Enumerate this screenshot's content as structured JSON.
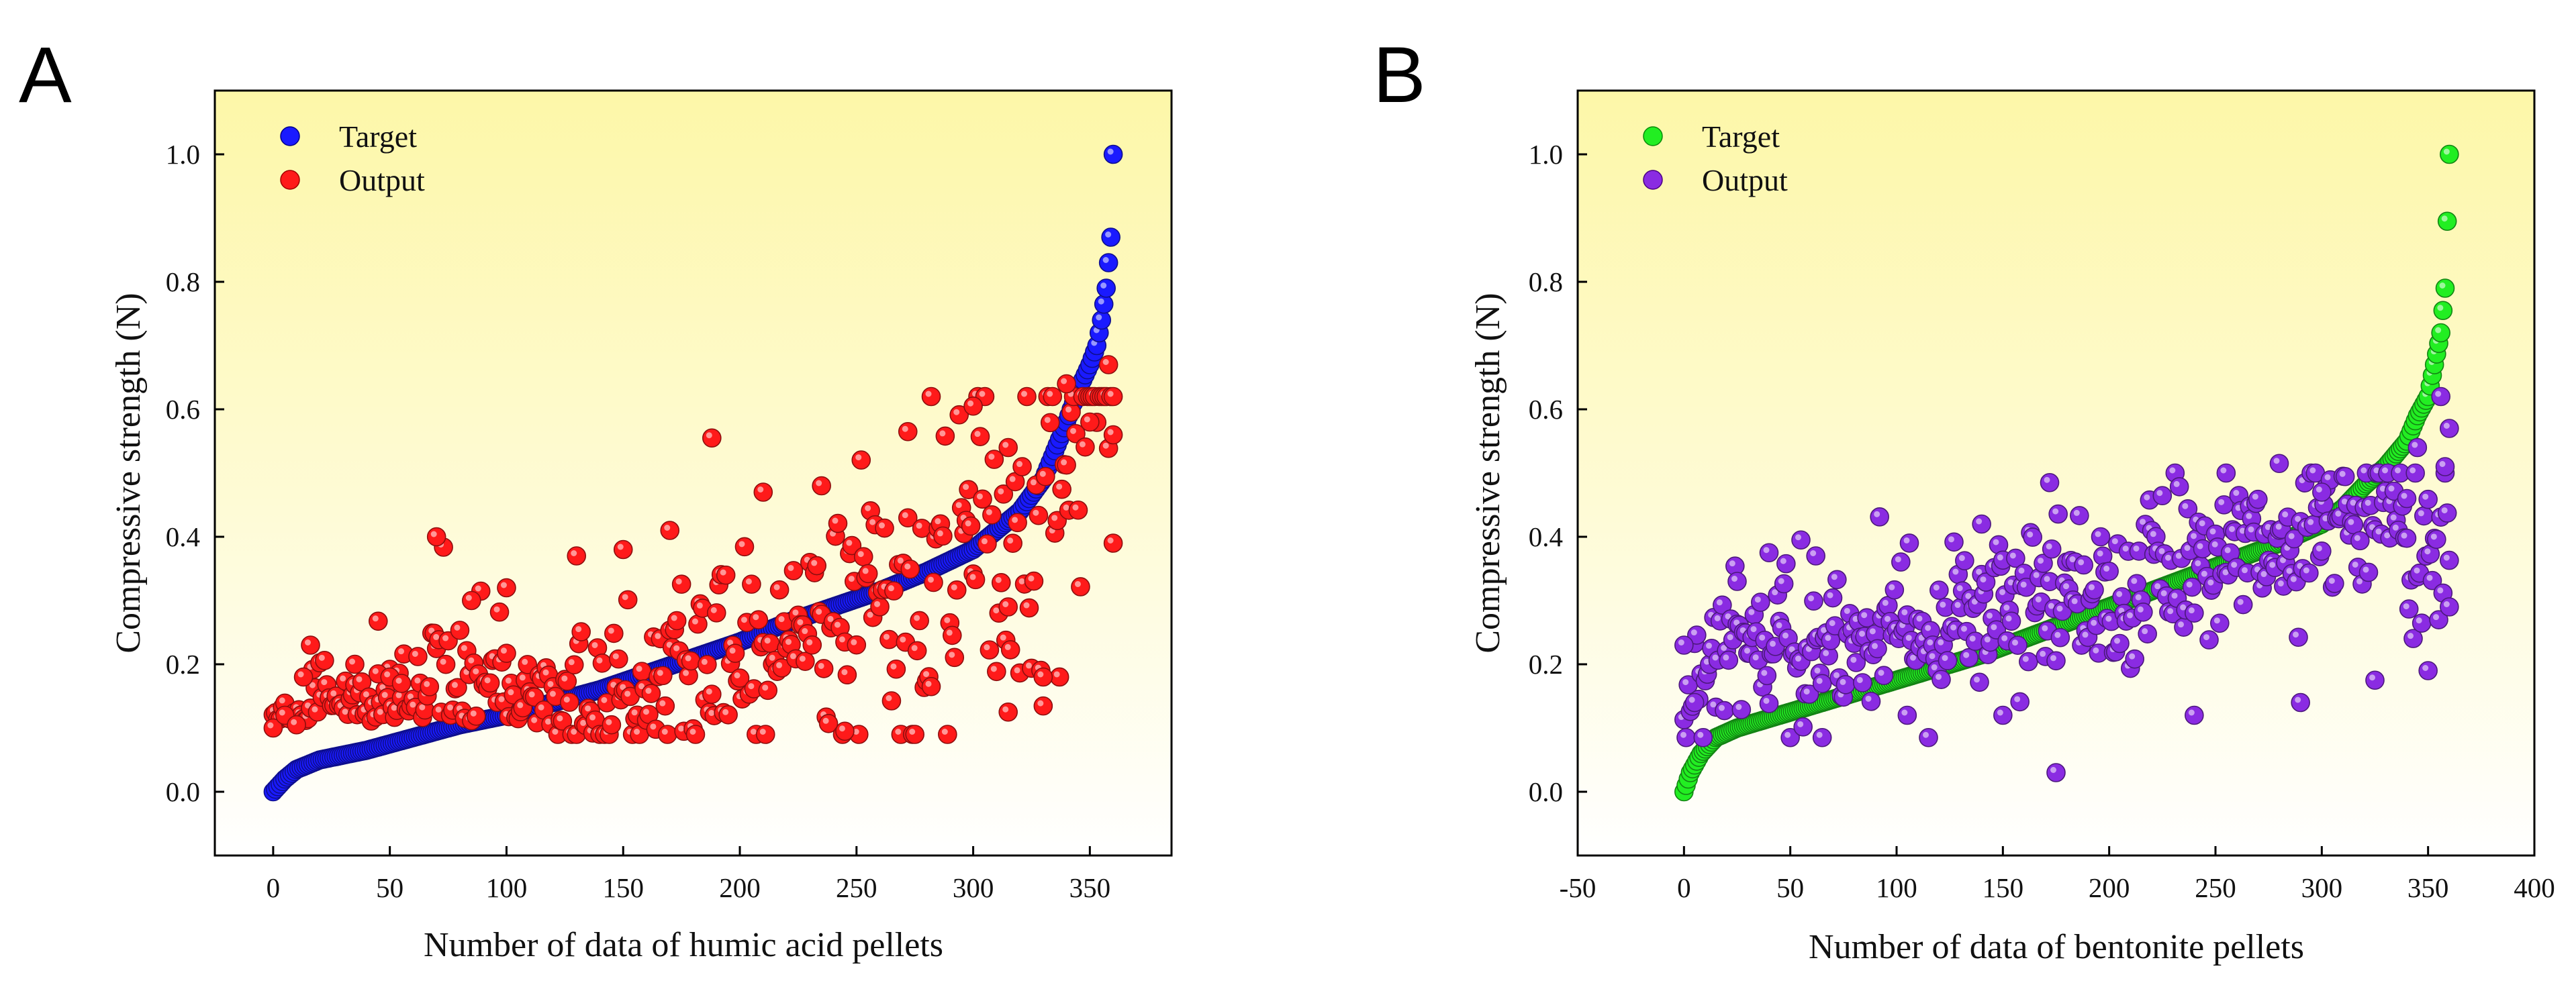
{
  "chart_data": [
    {
      "panel_label": "A",
      "type": "scatter",
      "xlabel": "Number of data of humic acid pellets",
      "ylabel": "Compressive strength (N)",
      "xlim": [
        -25,
        385
      ],
      "ylim": [
        -0.1,
        1.1
      ],
      "xticks": [
        0,
        50,
        100,
        150,
        200,
        250,
        300,
        350
      ],
      "xtick_labels": [
        "0",
        "50",
        "100",
        "150",
        "200",
        "250",
        "300",
        "350"
      ],
      "yticks": [
        0.0,
        0.2,
        0.4,
        0.6,
        0.8,
        1.0
      ],
      "ytick_labels": [
        "0.0",
        "0.2",
        "0.4",
        "0.6",
        "0.8",
        "1.0"
      ],
      "background": "yellow-to-white vertical gradient",
      "legend_position": "top-left",
      "series": [
        {
          "name": "Target",
          "color": "#1a1aff",
          "n_points": 361,
          "description": "sorted ascending",
          "anchor_x": [
            0,
            5,
            10,
            20,
            40,
            60,
            80,
            100,
            120,
            140,
            160,
            180,
            200,
            220,
            240,
            260,
            280,
            300,
            310,
            320,
            330,
            340,
            345,
            350,
            353,
            355,
            357,
            359,
            360
          ],
          "anchor_y": [
            0.0,
            0.02,
            0.035,
            0.05,
            0.065,
            0.085,
            0.105,
            0.12,
            0.14,
            0.16,
            0.185,
            0.21,
            0.235,
            0.265,
            0.29,
            0.315,
            0.345,
            0.38,
            0.41,
            0.44,
            0.49,
            0.58,
            0.63,
            0.67,
            0.7,
            0.74,
            0.79,
            0.87,
            1.0
          ]
        },
        {
          "name": "Output",
          "color": "#ff1a1a",
          "n_points": 361,
          "description": "model predictions, scattered around target",
          "sample_points": [
            [
              0,
              0.1
            ],
            [
              5,
              0.12
            ],
            [
              10,
              0.105
            ],
            [
              13,
              0.18
            ],
            [
              16,
              0.23
            ],
            [
              35,
              0.2
            ],
            [
              45,
              0.185
            ],
            [
              50,
              0.18
            ],
            [
              55,
              0.17
            ],
            [
              70,
              0.4
            ],
            [
              85,
              0.3
            ],
            [
              100,
              0.32
            ],
            [
              130,
              0.37
            ],
            [
              150,
              0.38
            ],
            [
              170,
              0.41
            ],
            [
              188,
              0.555
            ],
            [
              210,
              0.47
            ],
            [
              235,
              0.48
            ],
            [
              272,
              0.565
            ],
            [
              300,
              0.605
            ],
            [
              315,
              0.54
            ],
            [
              330,
              0.18
            ],
            [
              315,
              0.125
            ],
            [
              245,
              0.095
            ],
            [
              282,
              0.165
            ],
            [
              340,
              0.64
            ],
            [
              350,
              0.58
            ],
            [
              358,
              0.67
            ],
            [
              360,
              0.56
            ],
            [
              360,
              0.39
            ]
          ]
        }
      ]
    },
    {
      "panel_label": "B",
      "type": "scatter",
      "xlabel": "Number of data of bentonite pellets",
      "ylabel": "Compressive strength (N)",
      "xlim": [
        -50,
        400
      ],
      "ylim": [
        -0.1,
        1.1
      ],
      "xticks": [
        -50,
        0,
        50,
        100,
        150,
        200,
        250,
        300,
        350,
        400
      ],
      "xtick_labels": [
        "-50",
        "0",
        "50",
        "100",
        "150",
        "200",
        "250",
        "300",
        "350",
        "400"
      ],
      "yticks": [
        0.0,
        0.2,
        0.4,
        0.6,
        0.8,
        1.0
      ],
      "ytick_labels": [
        "0.0",
        "0.2",
        "0.4",
        "0.6",
        "0.8",
        "1.0"
      ],
      "background": "yellow-to-white vertical gradient",
      "legend_position": "top-left",
      "series": [
        {
          "name": "Target",
          "color": "#22ee22",
          "n_points": 361,
          "description": "sorted ascending",
          "anchor_x": [
            0,
            3,
            8,
            15,
            25,
            40,
            60,
            80,
            100,
            120,
            140,
            160,
            180,
            200,
            220,
            240,
            260,
            280,
            300,
            310,
            320,
            330,
            340,
            345,
            350,
            353,
            356,
            358,
            360
          ],
          "anchor_y": [
            0.0,
            0.03,
            0.06,
            0.085,
            0.1,
            0.115,
            0.135,
            0.155,
            0.175,
            0.195,
            0.215,
            0.24,
            0.265,
            0.29,
            0.315,
            0.34,
            0.365,
            0.39,
            0.42,
            0.445,
            0.48,
            0.51,
            0.55,
            0.59,
            0.62,
            0.67,
            0.72,
            0.79,
            1.0
          ]
        },
        {
          "name": "Output",
          "color": "#8a2be2",
          "n_points": 361,
          "description": "model predictions, scattered around target",
          "sample_points": [
            [
              0,
              0.23
            ],
            [
              5,
              0.14
            ],
            [
              25,
              0.33
            ],
            [
              40,
              0.375
            ],
            [
              55,
              0.395
            ],
            [
              62,
              0.37
            ],
            [
              65,
              0.085
            ],
            [
              140,
              0.42
            ],
            [
              172,
              0.485
            ],
            [
              175,
              0.03
            ],
            [
              255,
              0.5
            ],
            [
              280,
              0.515
            ],
            [
              300,
              0.47
            ],
            [
              340,
              0.46
            ],
            [
              345,
              0.54
            ],
            [
              356,
              0.62
            ],
            [
              360,
              0.57
            ],
            [
              358,
              0.51
            ],
            [
              360,
              0.29
            ],
            [
              350,
              0.19
            ],
            [
              325,
              0.175
            ],
            [
              290,
              0.14
            ],
            [
              240,
              0.12
            ],
            [
              150,
              0.12
            ],
            [
              105,
              0.12
            ]
          ]
        }
      ]
    }
  ]
}
